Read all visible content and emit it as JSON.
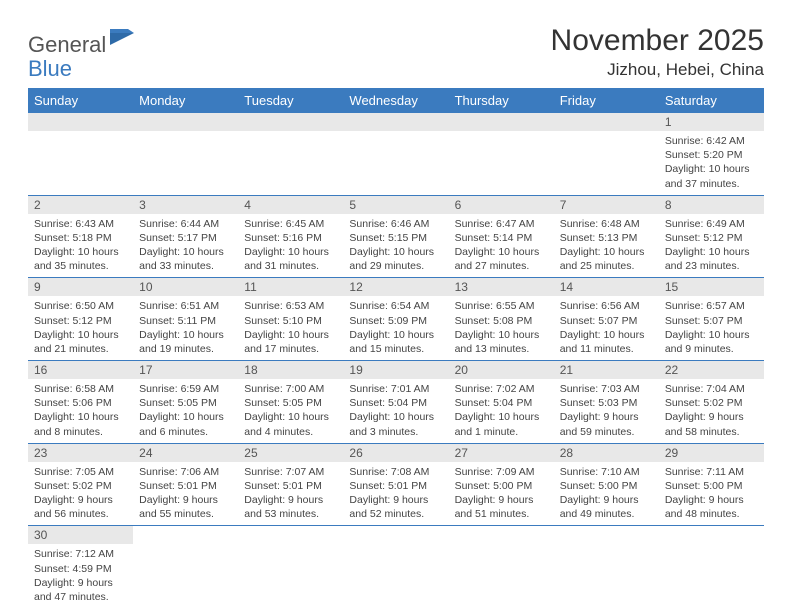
{
  "logo": {
    "main": "General",
    "sub": "Blue"
  },
  "title": "November 2025",
  "location": "Jizhou, Hebei, China",
  "colors": {
    "header_bg": "#3b7bbf",
    "header_text": "#ffffff",
    "daynum_bg": "#e8e8e8",
    "border": "#3b7bbf",
    "body_text": "#444444"
  },
  "weekdays": [
    "Sunday",
    "Monday",
    "Tuesday",
    "Wednesday",
    "Thursday",
    "Friday",
    "Saturday"
  ],
  "weeks": [
    [
      null,
      null,
      null,
      null,
      null,
      null,
      {
        "n": "1",
        "sr": "Sunrise: 6:42 AM",
        "ss": "Sunset: 5:20 PM",
        "d1": "Daylight: 10 hours",
        "d2": "and 37 minutes."
      }
    ],
    [
      {
        "n": "2",
        "sr": "Sunrise: 6:43 AM",
        "ss": "Sunset: 5:18 PM",
        "d1": "Daylight: 10 hours",
        "d2": "and 35 minutes."
      },
      {
        "n": "3",
        "sr": "Sunrise: 6:44 AM",
        "ss": "Sunset: 5:17 PM",
        "d1": "Daylight: 10 hours",
        "d2": "and 33 minutes."
      },
      {
        "n": "4",
        "sr": "Sunrise: 6:45 AM",
        "ss": "Sunset: 5:16 PM",
        "d1": "Daylight: 10 hours",
        "d2": "and 31 minutes."
      },
      {
        "n": "5",
        "sr": "Sunrise: 6:46 AM",
        "ss": "Sunset: 5:15 PM",
        "d1": "Daylight: 10 hours",
        "d2": "and 29 minutes."
      },
      {
        "n": "6",
        "sr": "Sunrise: 6:47 AM",
        "ss": "Sunset: 5:14 PM",
        "d1": "Daylight: 10 hours",
        "d2": "and 27 minutes."
      },
      {
        "n": "7",
        "sr": "Sunrise: 6:48 AM",
        "ss": "Sunset: 5:13 PM",
        "d1": "Daylight: 10 hours",
        "d2": "and 25 minutes."
      },
      {
        "n": "8",
        "sr": "Sunrise: 6:49 AM",
        "ss": "Sunset: 5:12 PM",
        "d1": "Daylight: 10 hours",
        "d2": "and 23 minutes."
      }
    ],
    [
      {
        "n": "9",
        "sr": "Sunrise: 6:50 AM",
        "ss": "Sunset: 5:12 PM",
        "d1": "Daylight: 10 hours",
        "d2": "and 21 minutes."
      },
      {
        "n": "10",
        "sr": "Sunrise: 6:51 AM",
        "ss": "Sunset: 5:11 PM",
        "d1": "Daylight: 10 hours",
        "d2": "and 19 minutes."
      },
      {
        "n": "11",
        "sr": "Sunrise: 6:53 AM",
        "ss": "Sunset: 5:10 PM",
        "d1": "Daylight: 10 hours",
        "d2": "and 17 minutes."
      },
      {
        "n": "12",
        "sr": "Sunrise: 6:54 AM",
        "ss": "Sunset: 5:09 PM",
        "d1": "Daylight: 10 hours",
        "d2": "and 15 minutes."
      },
      {
        "n": "13",
        "sr": "Sunrise: 6:55 AM",
        "ss": "Sunset: 5:08 PM",
        "d1": "Daylight: 10 hours",
        "d2": "and 13 minutes."
      },
      {
        "n": "14",
        "sr": "Sunrise: 6:56 AM",
        "ss": "Sunset: 5:07 PM",
        "d1": "Daylight: 10 hours",
        "d2": "and 11 minutes."
      },
      {
        "n": "15",
        "sr": "Sunrise: 6:57 AM",
        "ss": "Sunset: 5:07 PM",
        "d1": "Daylight: 10 hours",
        "d2": "and 9 minutes."
      }
    ],
    [
      {
        "n": "16",
        "sr": "Sunrise: 6:58 AM",
        "ss": "Sunset: 5:06 PM",
        "d1": "Daylight: 10 hours",
        "d2": "and 8 minutes."
      },
      {
        "n": "17",
        "sr": "Sunrise: 6:59 AM",
        "ss": "Sunset: 5:05 PM",
        "d1": "Daylight: 10 hours",
        "d2": "and 6 minutes."
      },
      {
        "n": "18",
        "sr": "Sunrise: 7:00 AM",
        "ss": "Sunset: 5:05 PM",
        "d1": "Daylight: 10 hours",
        "d2": "and 4 minutes."
      },
      {
        "n": "19",
        "sr": "Sunrise: 7:01 AM",
        "ss": "Sunset: 5:04 PM",
        "d1": "Daylight: 10 hours",
        "d2": "and 3 minutes."
      },
      {
        "n": "20",
        "sr": "Sunrise: 7:02 AM",
        "ss": "Sunset: 5:04 PM",
        "d1": "Daylight: 10 hours",
        "d2": "and 1 minute."
      },
      {
        "n": "21",
        "sr": "Sunrise: 7:03 AM",
        "ss": "Sunset: 5:03 PM",
        "d1": "Daylight: 9 hours",
        "d2": "and 59 minutes."
      },
      {
        "n": "22",
        "sr": "Sunrise: 7:04 AM",
        "ss": "Sunset: 5:02 PM",
        "d1": "Daylight: 9 hours",
        "d2": "and 58 minutes."
      }
    ],
    [
      {
        "n": "23",
        "sr": "Sunrise: 7:05 AM",
        "ss": "Sunset: 5:02 PM",
        "d1": "Daylight: 9 hours",
        "d2": "and 56 minutes."
      },
      {
        "n": "24",
        "sr": "Sunrise: 7:06 AM",
        "ss": "Sunset: 5:01 PM",
        "d1": "Daylight: 9 hours",
        "d2": "and 55 minutes."
      },
      {
        "n": "25",
        "sr": "Sunrise: 7:07 AM",
        "ss": "Sunset: 5:01 PM",
        "d1": "Daylight: 9 hours",
        "d2": "and 53 minutes."
      },
      {
        "n": "26",
        "sr": "Sunrise: 7:08 AM",
        "ss": "Sunset: 5:01 PM",
        "d1": "Daylight: 9 hours",
        "d2": "and 52 minutes."
      },
      {
        "n": "27",
        "sr": "Sunrise: 7:09 AM",
        "ss": "Sunset: 5:00 PM",
        "d1": "Daylight: 9 hours",
        "d2": "and 51 minutes."
      },
      {
        "n": "28",
        "sr": "Sunrise: 7:10 AM",
        "ss": "Sunset: 5:00 PM",
        "d1": "Daylight: 9 hours",
        "d2": "and 49 minutes."
      },
      {
        "n": "29",
        "sr": "Sunrise: 7:11 AM",
        "ss": "Sunset: 5:00 PM",
        "d1": "Daylight: 9 hours",
        "d2": "and 48 minutes."
      }
    ],
    [
      {
        "n": "30",
        "sr": "Sunrise: 7:12 AM",
        "ss": "Sunset: 4:59 PM",
        "d1": "Daylight: 9 hours",
        "d2": "and 47 minutes."
      },
      null,
      null,
      null,
      null,
      null,
      null
    ]
  ]
}
